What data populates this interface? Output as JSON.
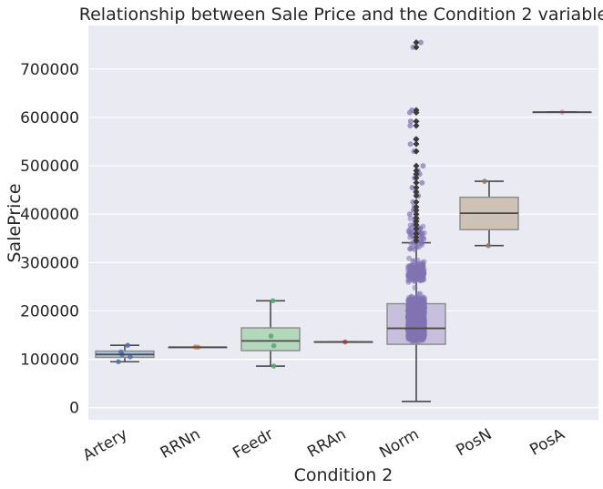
{
  "chart_data": {
    "type": "box",
    "title": "Relationship between Sale Price and the Condition 2 variable",
    "xlabel": "Condition 2",
    "ylabel": "SalePrice",
    "ylim": [
      -25000,
      790000
    ],
    "yticks": [
      0,
      100000,
      200000,
      300000,
      400000,
      500000,
      600000,
      700000
    ],
    "ytick_labels": [
      "0",
      "100000",
      "200000",
      "300000",
      "400000",
      "500000",
      "600000",
      "700000"
    ],
    "grid": true,
    "categories": [
      "Artery",
      "RRNn",
      "Feedr",
      "RRAn",
      "Norm",
      "PosN",
      "PosA"
    ],
    "boxes": [
      {
        "category": "Artery",
        "color": "#4c72b0",
        "whisker_low": 95000,
        "q1": 104000,
        "median": 110000,
        "q3": 117000,
        "whisker_high": 129000,
        "points": [
          95000,
          105000,
          110000,
          115000,
          129000
        ],
        "outliers": []
      },
      {
        "category": "RRNn",
        "color": "#dd8452",
        "whisker_low": 125000,
        "q1": 125000,
        "median": 125000,
        "q3": 125000,
        "whisker_high": 125000,
        "points": [
          125000,
          125500
        ],
        "outliers": []
      },
      {
        "category": "Feedr",
        "color": "#55a868",
        "whisker_low": 86000,
        "q1": 118000,
        "median": 138000,
        "q3": 165000,
        "whisker_high": 221000,
        "points": [
          86000,
          128000,
          148000,
          221000
        ],
        "outliers": []
      },
      {
        "category": "RRAn",
        "color": "#c44e52",
        "whisker_low": 136000,
        "q1": 136000,
        "median": 136000,
        "q3": 136000,
        "whisker_high": 136000,
        "points": [
          136000
        ],
        "outliers": []
      },
      {
        "category": "Norm",
        "color": "#8172b3",
        "whisker_low": 13000,
        "q1": 131000,
        "median": 164000,
        "q3": 215000,
        "whisker_high": 341000,
        "points": [],
        "outliers": [
          345000,
          352000,
          360000,
          370000,
          378000,
          385000,
          392000,
          400000,
          408000,
          415000,
          425000,
          438000,
          446000,
          455000,
          465000,
          475000,
          483000,
          490000,
          500000,
          530000,
          545000,
          555000,
          583000,
          592000,
          610000,
          615000,
          745000,
          755000
        ]
      },
      {
        "category": "PosN",
        "color": "#937860",
        "whisker_low": 335000,
        "q1": 368000,
        "median": 402000,
        "q3": 435000,
        "whisker_high": 468000,
        "points": [
          335000,
          468000
        ],
        "outliers": []
      },
      {
        "category": "PosA",
        "color": "#da8bc3",
        "whisker_low": 611000,
        "q1": 611000,
        "median": 611000,
        "q3": 611000,
        "whisker_high": 611000,
        "points": [
          611000
        ],
        "outliers": []
      }
    ]
  }
}
